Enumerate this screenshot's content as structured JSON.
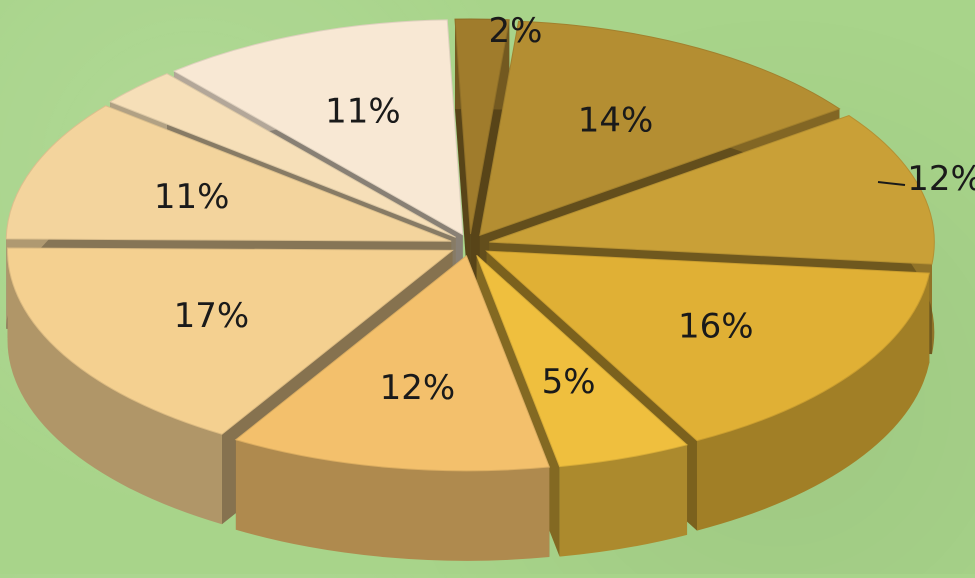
{
  "chart_data": {
    "type": "pie",
    "style": "3d-exploded",
    "slices": [
      {
        "label": "2%",
        "value": 2,
        "color": "#a07c2c"
      },
      {
        "label": "14%",
        "value": 14,
        "color": "#b48e32"
      },
      {
        "label": "12%",
        "value": 12,
        "color": "#c9a037"
      },
      {
        "label": "16%",
        "value": 16,
        "color": "#e0b035"
      },
      {
        "label": "5%",
        "value": 5,
        "color": "#efbf3e"
      },
      {
        "label": "12%",
        "value": 12,
        "color": "#f3c06c"
      },
      {
        "label": "17%",
        "value": 17,
        "color": "#f4d090"
      },
      {
        "label": "11%",
        "value": 11,
        "color": "#f3d49d"
      },
      {
        "label": "",
        "value": 3,
        "color": "#f6dfb8"
      },
      {
        "label": "11%",
        "value": 11,
        "color": "#f8e8d4"
      }
    ],
    "title": "",
    "legend": "none"
  }
}
